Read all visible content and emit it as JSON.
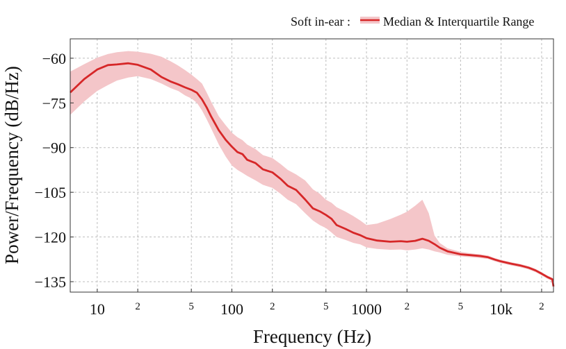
{
  "chart_data": {
    "type": "line",
    "title": "",
    "xlabel": "Frequency (Hz)",
    "ylabel": "Power/Frequency (dB/Hz)",
    "x_scale": "log",
    "xlim": [
      6.3,
      24500
    ],
    "ylim": [
      -138.5,
      -53.5
    ],
    "grid": true,
    "legend": {
      "placement": "top-right-outside",
      "prefix": "Soft in-ear :",
      "entries": [
        "Median & Interquartile Range"
      ]
    },
    "x_ticks": [
      {
        "value": 10,
        "label": "10",
        "major": true
      },
      {
        "value": 20,
        "label": "2",
        "major": false
      },
      {
        "value": 50,
        "label": "5",
        "major": false
      },
      {
        "value": 100,
        "label": "100",
        "major": true
      },
      {
        "value": 200,
        "label": "2",
        "major": false
      },
      {
        "value": 500,
        "label": "5",
        "major": false
      },
      {
        "value": 1000,
        "label": "1000",
        "major": true
      },
      {
        "value": 2000,
        "label": "2",
        "major": false
      },
      {
        "value": 5000,
        "label": "5",
        "major": false
      },
      {
        "value": 10000,
        "label": "10k",
        "major": true
      },
      {
        "value": 20000,
        "label": "2",
        "major": false
      }
    ],
    "y_ticks": [
      {
        "value": -60,
        "label": "−60"
      },
      {
        "value": -75,
        "label": "−75"
      },
      {
        "value": -90,
        "label": "−90"
      },
      {
        "value": -105,
        "label": "−105"
      },
      {
        "value": -120,
        "label": "−120"
      },
      {
        "value": -135,
        "label": "−135"
      }
    ],
    "series": [
      {
        "name": "Median",
        "color": "#d62728",
        "band_color": "#f4c6c9",
        "x": [
          6.3,
          8,
          10,
          12,
          14,
          17,
          20,
          25,
          30,
          35,
          40,
          45,
          50,
          55,
          60,
          65,
          70,
          80,
          90,
          100,
          110,
          120,
          130,
          150,
          170,
          200,
          230,
          260,
          300,
          350,
          400,
          450,
          500,
          550,
          600,
          700,
          800,
          900,
          1000,
          1200,
          1500,
          1800,
          2000,
          2300,
          2600,
          2900,
          3200,
          3500,
          4000,
          5000,
          6000,
          7000,
          8000,
          9000,
          10000,
          12000,
          14000,
          16000,
          18000,
          20000,
          22000,
          24000,
          24500
        ],
        "median": [
          -71.5,
          -67,
          -63.8,
          -62.3,
          -62.1,
          -61.7,
          -62.2,
          -63.8,
          -66.3,
          -67.8,
          -68.8,
          -69.8,
          -70.6,
          -71.6,
          -73.8,
          -76.5,
          -79.5,
          -84.2,
          -87.4,
          -89.7,
          -91.5,
          -92.2,
          -94.1,
          -95.2,
          -97.3,
          -98.3,
          -100.5,
          -102.8,
          -104.2,
          -107.4,
          -110.4,
          -111.4,
          -112.6,
          -113.9,
          -116,
          -117.3,
          -118.6,
          -119.4,
          -120.4,
          -121.2,
          -121.6,
          -121.4,
          -121.6,
          -121.3,
          -120.6,
          -121.3,
          -122.4,
          -123.6,
          -124.8,
          -125.8,
          -126.1,
          -126.4,
          -126.8,
          -127.6,
          -128.2,
          -129,
          -129.6,
          -130.3,
          -131.2,
          -132.3,
          -133.4,
          -134.2,
          -136.6
        ],
        "q1": [
          -79,
          -74.5,
          -71,
          -69,
          -67.5,
          -66.5,
          -66,
          -67,
          -68.5,
          -70,
          -71,
          -72.5,
          -73.5,
          -75,
          -77.5,
          -80.5,
          -83.5,
          -89,
          -93,
          -96,
          -97.5,
          -98.5,
          -99.5,
          -101,
          -102.5,
          -103.5,
          -105.5,
          -107.5,
          -109,
          -112,
          -114.5,
          -116,
          -117,
          -118.5,
          -120,
          -121,
          -122,
          -122.5,
          -123.5,
          -124,
          -124.3,
          -124.2,
          -124.5,
          -124.2,
          -123.8,
          -124.2,
          -124.8,
          -125.2,
          -126,
          -126.5,
          -126.8,
          -127.1,
          -127.4,
          -128.2,
          -128.8,
          -129.6,
          -130.2,
          -130.9,
          -131.8,
          -132.9,
          -134,
          -134.8,
          -137.2
        ],
        "q3": [
          -64.5,
          -62,
          -59.8,
          -58.6,
          -58,
          -57.6,
          -57.8,
          -58.5,
          -59.5,
          -61,
          -62.5,
          -64,
          -65.5,
          -67,
          -68.5,
          -71.5,
          -74.5,
          -79.5,
          -82.5,
          -85,
          -86.5,
          -87.5,
          -89,
          -90.5,
          -92.5,
          -93.5,
          -95.5,
          -97.5,
          -99,
          -101,
          -104,
          -105.5,
          -107.5,
          -108.5,
          -110,
          -111.5,
          -113,
          -114.5,
          -116,
          -115.5,
          -114,
          -112.5,
          -111.5,
          -109.5,
          -107.5,
          -112,
          -119.5,
          -122,
          -123.8,
          -125,
          -125.5,
          -125.8,
          -126.2,
          -127.1,
          -127.7,
          -128.5,
          -129.1,
          -129.8,
          -130.7,
          -131.8,
          -132.9,
          -133.7,
          -136.1
        ]
      }
    ]
  }
}
